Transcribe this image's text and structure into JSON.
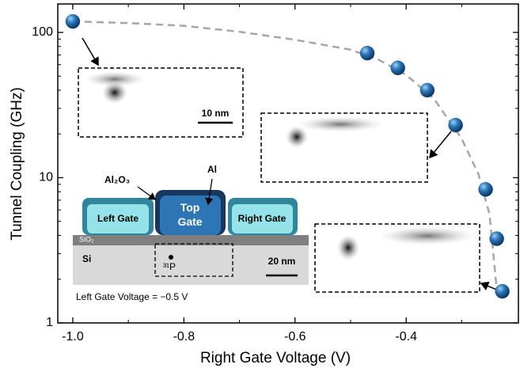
{
  "chart_data": {
    "type": "scatter",
    "xlabel": "Right Gate Voltage (V)",
    "ylabel": "Tunnel Coupling (GHz)",
    "xlim": [
      -1.027,
      -0.198
    ],
    "ylim": [
      1,
      157
    ],
    "log_y": true,
    "xticks": [
      {
        "value": -1.0,
        "label": "-1.0"
      },
      -0.8,
      -0.6,
      -0.4
    ],
    "xminorticks": [
      -0.9,
      -0.7,
      -0.5,
      -0.3
    ],
    "yticks": [
      1,
      10,
      100
    ],
    "yminorticks": [
      2,
      3,
      4,
      5,
      6,
      7,
      8,
      9,
      20,
      30,
      40,
      50,
      60,
      70,
      80,
      90
    ],
    "series": [
      {
        "kind": "points",
        "color": "#1f5f99",
        "x": [
          -1.0,
          -0.47,
          -0.415,
          -0.362,
          -0.311,
          -0.257,
          -0.237,
          -0.227
        ],
        "values": [
          119,
          72,
          57,
          40,
          23,
          8.3,
          3.8,
          1.65
        ]
      },
      {
        "kind": "dashed-line",
        "color": "#a6a6a6",
        "x": [
          -1.0,
          -0.9,
          -0.8,
          -0.7,
          -0.6,
          -0.5,
          -0.45,
          -0.4,
          -0.35,
          -0.3,
          -0.27,
          -0.25,
          -0.237
        ],
        "values": [
          119,
          116,
          111,
          101,
          89,
          76,
          65,
          51,
          35,
          18.5,
          10.6,
          5.6,
          1.7
        ]
      }
    ],
    "annotations": {
      "scale1": "10 nm",
      "oxide": "Al₂O₃",
      "metal": "Al",
      "left_gate": "Left Gate",
      "top_gate": "Top\nGate",
      "right_gate": "Right Gate",
      "sio2": "SiO₂",
      "si": "Si",
      "donor": "³¹P",
      "scale2": "20 nm",
      "condition": "Left Gate Voltage = −0.5 V"
    }
  }
}
